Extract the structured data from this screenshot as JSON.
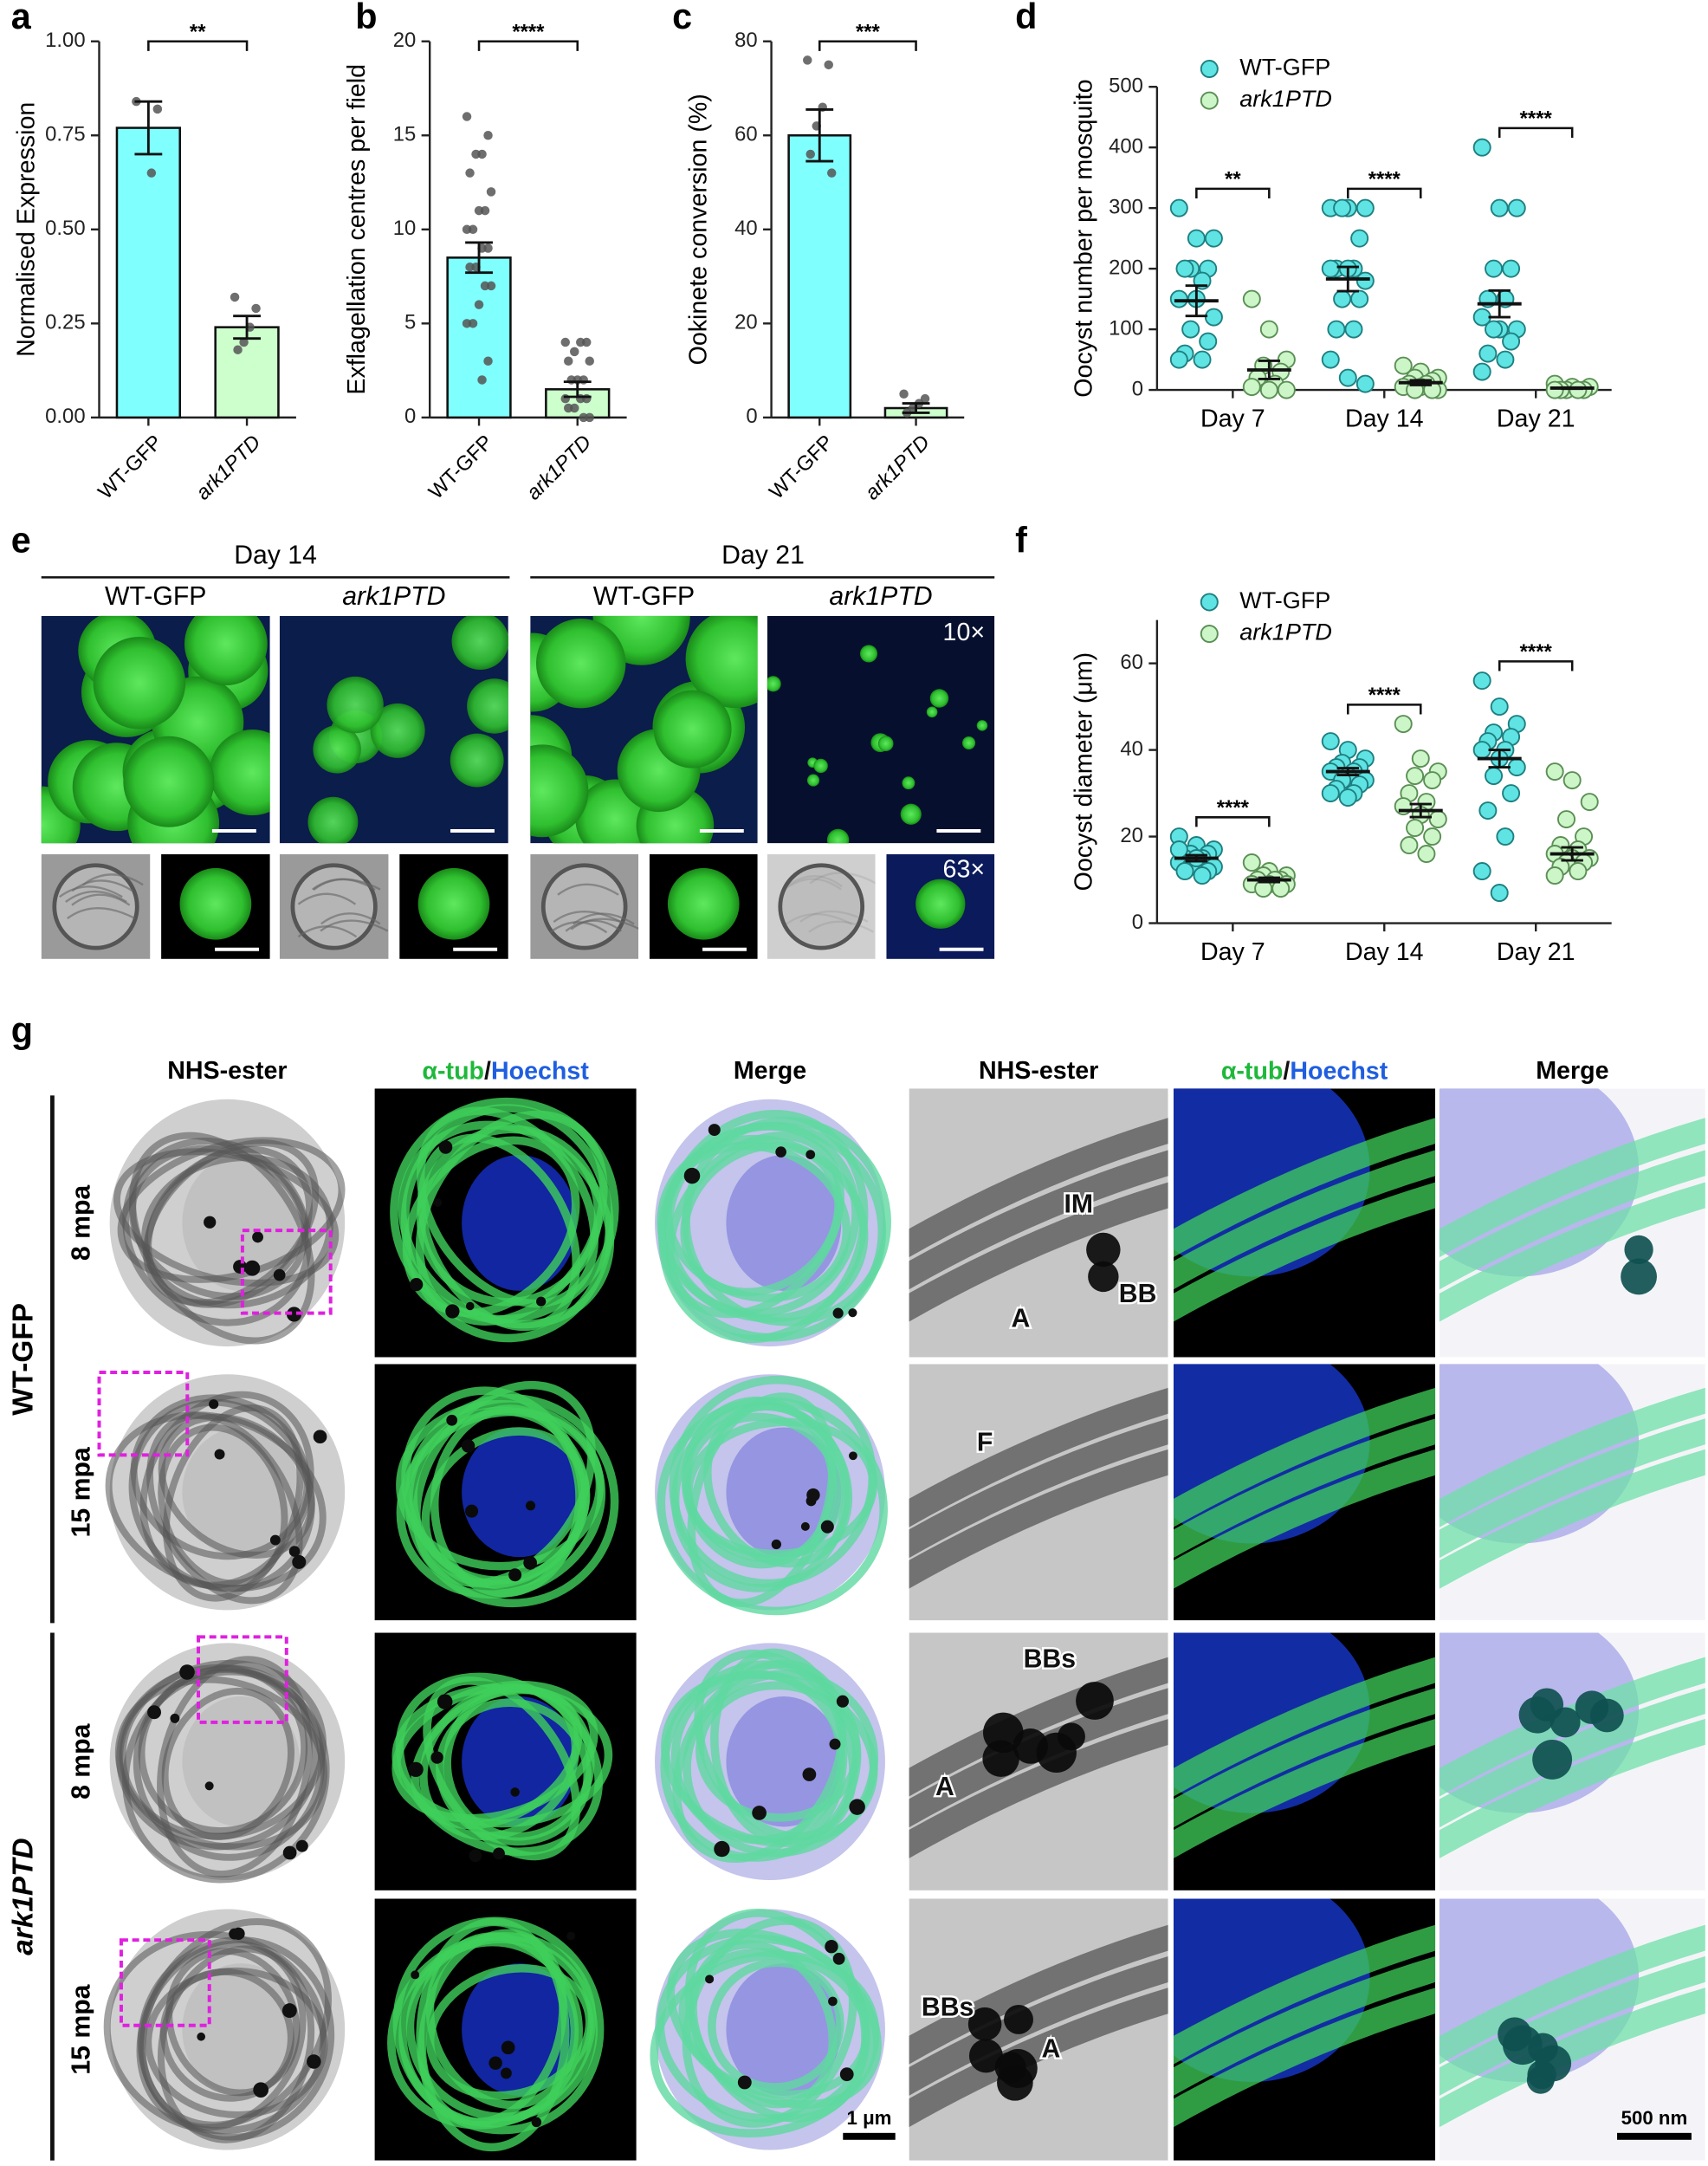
{
  "chart_data": [
    {
      "type": "bar",
      "label": "a",
      "ylabel": "Normalised Expression",
      "categories": [
        "WT-GFP",
        "ark1PTD"
      ],
      "colors": [
        "#80ffff",
        "#ccffcc"
      ],
      "values": [
        0.77,
        0.24
      ],
      "errors": [
        0.07,
        0.03
      ],
      "points": [
        [
          0.84,
          0.82,
          0.65
        ],
        [
          0.32,
          0.29,
          0.24,
          0.2,
          0.18
        ]
      ],
      "ylim": [
        0,
        1
      ],
      "yticks": [
        {
          "value": 0,
          "label": "0.00"
        },
        {
          "value": 0.25,
          "label": "0.25"
        },
        {
          "value": 0.5,
          "label": "0.50"
        },
        {
          "value": 0.75,
          "label": "0.75"
        },
        {
          "value": 1,
          "label": "1.00"
        }
      ],
      "significance": "**"
    },
    {
      "type": "bar",
      "label": "b",
      "ylabel": "Exflagellation centres per field",
      "categories": [
        "WT-GFP",
        "ark1PTD"
      ],
      "colors": [
        "#80ffff",
        "#ccffcc"
      ],
      "values": [
        8.5,
        1.5
      ],
      "errors": [
        0.8,
        0.4
      ],
      "points": [
        [
          16,
          15,
          14,
          14,
          13,
          12,
          11,
          11,
          10,
          10,
          9,
          9,
          8,
          8,
          7,
          7,
          6,
          5,
          5,
          3,
          2
        ],
        [
          4,
          4,
          4,
          3.5,
          3,
          3,
          2,
          2,
          2,
          1,
          1,
          1,
          0.5,
          0.5,
          0,
          0
        ]
      ],
      "ylim": [
        0,
        20
      ],
      "yticks": [
        0,
        5,
        10,
        15,
        20
      ],
      "significance": "****"
    },
    {
      "type": "bar",
      "label": "c",
      "ylabel": "Ookinete conversion (%)",
      "categories": [
        "WT-GFP",
        "ark1PTD"
      ],
      "colors": [
        "#80ffff",
        "#ccffcc"
      ],
      "values": [
        60,
        2
      ],
      "errors": [
        5.5,
        1
      ],
      "points": [
        [
          76,
          75,
          66,
          62,
          56,
          52
        ],
        [
          5,
          4,
          3,
          2,
          1
        ]
      ],
      "ylim": [
        0,
        80
      ],
      "yticks": [
        0,
        20,
        40,
        60,
        80
      ],
      "significance": "***"
    },
    {
      "type": "dot",
      "label": "d",
      "ylabel": "Oocyst number per mosquito",
      "categories": [
        "Day 7",
        "Day 14",
        "Day 21"
      ],
      "series": [
        {
          "name": "WT-GFP",
          "color": "#5fe3e3",
          "values": [
            147,
            183,
            142
          ],
          "errors": [
            25,
            20,
            22
          ],
          "points": [
            [
              300,
              250,
              250,
              200,
              200,
              200,
              180,
              150,
              150,
              120,
              100,
              80,
              60,
              50,
              50
            ],
            [
              300,
              300,
              300,
              300,
              250,
              200,
              200,
              200,
              200,
              180,
              150,
              150,
              100,
              100,
              50,
              20,
              10
            ],
            [
              400,
              300,
              300,
              200,
              200,
              150,
              150,
              120,
              100,
              100,
              100,
              80,
              60,
              50,
              30
            ]
          ]
        },
        {
          "name": "ark1PTD",
          "color": "#ccf5c8",
          "values": [
            33,
            12,
            3
          ],
          "errors": [
            15,
            4,
            1
          ],
          "points": [
            [
              150,
              100,
              50,
              40,
              30,
              20,
              10,
              5,
              0,
              0
            ],
            [
              40,
              30,
              20,
              20,
              15,
              10,
              10,
              5,
              5,
              0,
              0,
              0
            ],
            [
              10,
              5,
              5,
              0,
              0,
              0,
              0,
              0
            ]
          ]
        }
      ],
      "ylim": [
        0,
        500
      ],
      "yticks": [
        0,
        100,
        200,
        300,
        400,
        500
      ],
      "significance": [
        "**",
        "****",
        "****"
      ]
    },
    {
      "type": "dot",
      "label": "f",
      "ylabel": "Oocyst diameter (μm)",
      "categories": [
        "Day 7",
        "Day 14",
        "Day 21"
      ],
      "series": [
        {
          "name": "WT-GFP",
          "color": "#5fe3e3",
          "values": [
            15,
            35,
            38
          ],
          "errors": [
            0.7,
            0.8,
            2
          ],
          "points": [
            [
              20,
              18,
              17,
              16,
              16,
              15,
              15,
              14,
              14,
              13,
              13,
              12,
              12,
              11,
              17,
              15
            ],
            [
              42,
              40,
              38,
              37,
              36,
              36,
              35,
              35,
              34,
              33,
              33,
              32,
              31,
              30,
              30,
              29
            ],
            [
              56,
              50,
              46,
              44,
              43,
              42,
              40,
              40,
              38,
              36,
              34,
              30,
              26,
              20,
              12,
              7
            ]
          ]
        },
        {
          "name": "ark1PTD",
          "color": "#ccf5c8",
          "values": [
            10,
            26,
            16
          ],
          "errors": [
            0.5,
            1.5,
            1.5
          ],
          "points": [
            [
              14,
              12,
              11,
              11,
              10,
              10,
              10,
              9,
              9,
              9,
              8,
              8
            ],
            [
              46,
              38,
              35,
              34,
              33,
              30,
              28,
              27,
              25,
              24,
              22,
              20,
              18,
              16
            ],
            [
              35,
              33,
              28,
              24,
              20,
              18,
              17,
              16,
              15,
              15,
              14,
              14,
              13,
              12,
              11
            ]
          ]
        }
      ],
      "ylim": [
        0,
        70
      ],
      "yticks": [
        0,
        20,
        40,
        60
      ],
      "significance": [
        "****",
        "****",
        "****"
      ]
    }
  ],
  "panels": {
    "e": {
      "label": "e",
      "days": [
        "Day 14",
        "Day 21"
      ],
      "groups": [
        "WT-GFP",
        "ark1PTD"
      ],
      "magnifications": [
        "10×",
        "63×"
      ]
    },
    "g": {
      "label": "g",
      "columns": {
        "nhs": "NHS-ester",
        "tub": "α-tub",
        "slash": "/",
        "hoechst": "Hoechst",
        "merge": "Merge"
      },
      "rows": [
        "WT-GFP",
        "ark1PTD"
      ],
      "times": [
        "8 mpa",
        "15 mpa"
      ],
      "annotations": [
        [
          "IM",
          "BB",
          "A"
        ],
        [
          "F"
        ],
        [
          "BBs",
          "A"
        ],
        [
          "BBs",
          "A"
        ]
      ],
      "scale_bars": [
        "1 μm",
        "500 nm"
      ]
    }
  }
}
